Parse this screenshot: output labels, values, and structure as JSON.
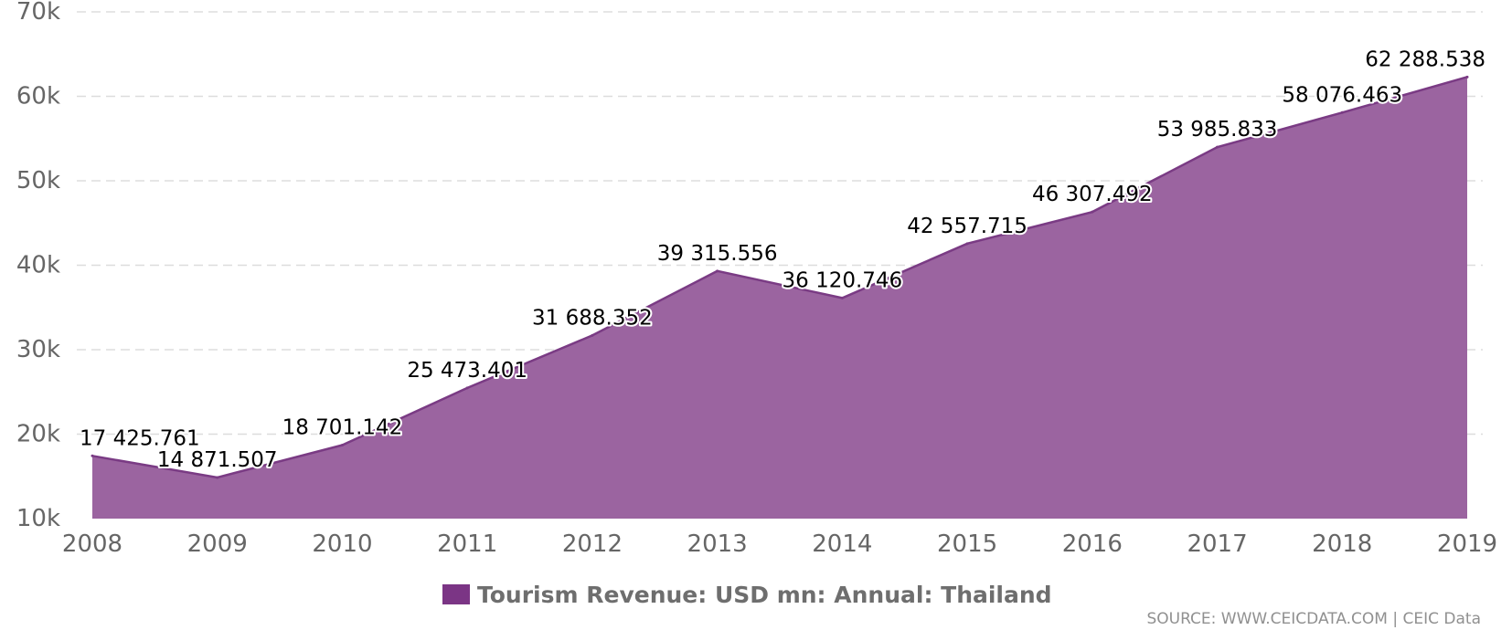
{
  "chart_data": {
    "type": "area",
    "x": [
      "2008",
      "2009",
      "2010",
      "2011",
      "2012",
      "2013",
      "2014",
      "2015",
      "2016",
      "2017",
      "2018",
      "2019"
    ],
    "values": [
      17425.761,
      14871.507,
      18701.142,
      25473.401,
      31688.352,
      39315.556,
      36120.746,
      42557.715,
      46307.492,
      53985.833,
      58076.463,
      62288.538
    ],
    "data_labels": [
      "17 425.761",
      "14 871.507",
      "18 701.142",
      "25 473.401",
      "31 688.352",
      "39 315.556",
      "36 120.746",
      "42 557.715",
      "46 307.492",
      "53 985.833",
      "58 076.463",
      "62 288.538"
    ],
    "ylim": [
      10000,
      70000
    ],
    "yticks": [
      10000,
      20000,
      30000,
      40000,
      50000,
      60000,
      70000
    ],
    "ytick_labels": [
      "10k",
      "20k",
      "30k",
      "40k",
      "50k",
      "60k",
      "70k"
    ],
    "grid": true,
    "legend_position": "bottom-center",
    "series_name": "Tourism Revenue: USD mn: Annual: Thailand",
    "fill_color": "#9b64a0",
    "line_color": "#7a3b84",
    "legend_color": "#7b3585"
  },
  "source_text": "SOURCE: WWW.CEICDATA.COM | CEIC Data"
}
